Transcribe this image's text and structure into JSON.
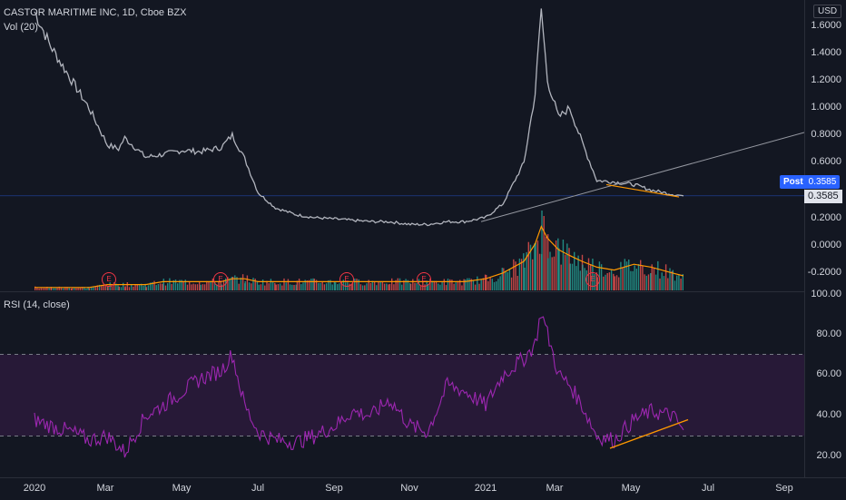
{
  "header": {
    "symbol_title": "CASTOR MARITIME INC, 1D, Cboe BZX",
    "volume_legend": "Vol (20)",
    "currency": "USD"
  },
  "price_axis": {
    "ticks": [
      "1.6000",
      "1.4000",
      "1.2000",
      "1.0000",
      "0.8000",
      "0.6000",
      "0.2000",
      "0.0000",
      "-0.2000",
      "100.00"
    ],
    "post_label": "Post",
    "post_value": "0.3585",
    "last_value": "0.3585"
  },
  "rsi": {
    "legend": "RSI (14, close)",
    "ticks": [
      "80.00",
      "60.00",
      "40.00",
      "20.00"
    ]
  },
  "time_axis": {
    "ticks": [
      "2020",
      "Mar",
      "May",
      "Jul",
      "Sep",
      "Nov",
      "2021",
      "Mar",
      "May",
      "Jul",
      "Sep"
    ]
  },
  "earnings_marker": "E",
  "colors": {
    "background": "#131722",
    "price_line": "#b2b5be",
    "volume_up": "#26a69a",
    "volume_down": "#ef5350",
    "volume_ma": "#ff9800",
    "rsi_line": "#9c27b0",
    "rsi_band": "#2a1a3a",
    "trendline_orange": "#ff9800",
    "trendline_gray": "#9598a1",
    "post_tag": "#2962ff",
    "earnings": "#f23645"
  },
  "chart_data": [
    {
      "type": "line",
      "title": "CASTOR MARITIME INC, 1D, Cboe BZX",
      "x_start": "2020-01-02",
      "x_end": "2021-06-10",
      "series": [
        {
          "name": "Price",
          "x": [
            "2020-01-02",
            "2020-01-15",
            "2020-02-01",
            "2020-02-15",
            "2020-03-01",
            "2020-03-10",
            "2020-03-15",
            "2020-04-01",
            "2020-04-15",
            "2020-05-01",
            "2020-05-15",
            "2020-06-01",
            "2020-06-10",
            "2020-06-20",
            "2020-07-01",
            "2020-07-15",
            "2020-08-01",
            "2020-08-15",
            "2020-09-01",
            "2020-09-15",
            "2020-10-01",
            "2020-10-15",
            "2020-11-01",
            "2020-11-15",
            "2020-12-01",
            "2020-12-15",
            "2021-01-01",
            "2021-01-15",
            "2021-02-01",
            "2021-02-10",
            "2021-02-15",
            "2021-02-20",
            "2021-03-01",
            "2021-03-10",
            "2021-03-20",
            "2021-04-01",
            "2021-04-15",
            "2021-05-01",
            "2021-05-15",
            "2021-06-01",
            "2021-06-10"
          ],
          "values": [
            1.7,
            1.45,
            1.2,
            1.0,
            0.73,
            0.7,
            0.78,
            0.64,
            0.66,
            0.69,
            0.68,
            0.71,
            0.8,
            0.63,
            0.38,
            0.27,
            0.22,
            0.2,
            0.19,
            0.18,
            0.17,
            0.17,
            0.15,
            0.15,
            0.17,
            0.17,
            0.2,
            0.3,
            0.6,
            1.1,
            1.72,
            1.2,
            0.93,
            1.0,
            0.75,
            0.47,
            0.46,
            0.44,
            0.4,
            0.37,
            0.3585
          ]
        }
      ],
      "ylim": [
        -0.2,
        1.7
      ],
      "yticks": [
        "1.6000",
        "1.4000",
        "1.2000",
        "1.0000",
        "0.8000",
        "0.6000",
        "0.2000",
        "0.0000",
        "-0.2000"
      ],
      "xticks": [
        "2020",
        "Mar",
        "May",
        "Jul",
        "Sep",
        "Nov",
        "2021",
        "Mar",
        "May",
        "Jul",
        "Sep"
      ]
    },
    {
      "type": "bar",
      "title": "Vol (20)",
      "series": [
        {
          "name": "Volume",
          "values": [
            1,
            1,
            1,
            1,
            2,
            2,
            2,
            2,
            3,
            3,
            3,
            3,
            4,
            4,
            3,
            3,
            3,
            3,
            3,
            3,
            3,
            3,
            3,
            3,
            3,
            3,
            4,
            6,
            10,
            16,
            22,
            18,
            14,
            12,
            10,
            8,
            7,
            9,
            8,
            6,
            5
          ]
        }
      ]
    },
    {
      "type": "line",
      "title": "RSI (14, close)",
      "series": [
        {
          "name": "RSI",
          "x": [
            "2020-01-02",
            "2020-01-15",
            "2020-02-01",
            "2020-02-15",
            "2020-03-01",
            "2020-03-15",
            "2020-04-01",
            "2020-04-15",
            "2020-05-01",
            "2020-05-15",
            "2020-06-01",
            "2020-06-10",
            "2020-06-20",
            "2020-07-01",
            "2020-07-15",
            "2020-08-01",
            "2020-08-15",
            "2020-09-01",
            "2020-09-15",
            "2020-10-01",
            "2020-10-15",
            "2020-11-01",
            "2020-11-15",
            "2020-12-01",
            "2020-12-15",
            "2021-01-01",
            "2021-01-15",
            "2021-02-01",
            "2021-02-10",
            "2021-02-15",
            "2021-02-20",
            "2021-03-01",
            "2021-03-10",
            "2021-03-20",
            "2021-04-01",
            "2021-04-15",
            "2021-05-01",
            "2021-05-15",
            "2021-06-01",
            "2021-06-10"
          ],
          "values": [
            38,
            35,
            32,
            28,
            30,
            22,
            40,
            45,
            52,
            58,
            62,
            70,
            45,
            32,
            28,
            27,
            30,
            35,
            42,
            40,
            48,
            35,
            32,
            55,
            52,
            45,
            60,
            68,
            75,
            91,
            80,
            60,
            55,
            45,
            30,
            28,
            38,
            42,
            40,
            33
          ]
        }
      ],
      "ylim": [
        10,
        100
      ],
      "yticks": [
        "80.00",
        "60.00",
        "40.00",
        "20.00"
      ],
      "bands": [
        30,
        70
      ]
    }
  ]
}
